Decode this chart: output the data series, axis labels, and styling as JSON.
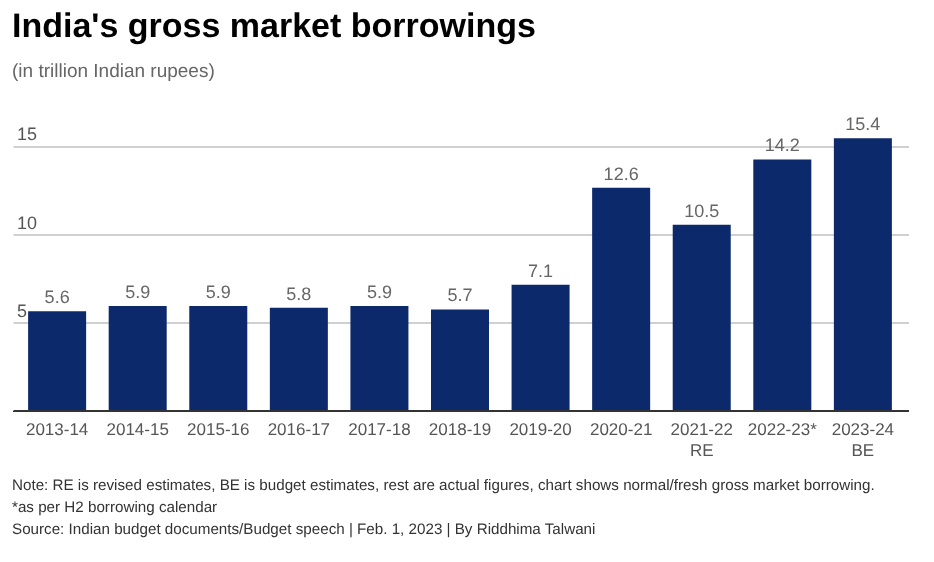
{
  "chart_data": {
    "type": "bar",
    "title": "India's gross market borrowings",
    "subtitle": "(in trillion Indian rupees)",
    "categories": [
      "2013-14",
      "2014-15",
      "2015-16",
      "2016-17",
      "2017-18",
      "2018-19",
      "2019-20",
      "2020-21",
      "2021-22\nRE",
      "2022-23*",
      "2023-24\nBE"
    ],
    "values": [
      5.6,
      5.9,
      5.9,
      5.8,
      5.9,
      5.7,
      7.1,
      12.6,
      10.5,
      14.2,
      15.4
    ],
    "color": "#0c2a6b",
    "ylim": [
      0,
      17
    ],
    "yticks": [
      5,
      10,
      15
    ],
    "grid": "y",
    "data_labels": true,
    "annotations": [
      "Note: RE is revised estimates, BE is budget estimates, rest are actual figures, chart shows normal/fresh gross market borrowing.",
      "*as per H2 borrowing calendar",
      "Source: Indian budget documents/Budget speech | Feb. 1, 2023 | By Riddhima Talwani"
    ]
  }
}
